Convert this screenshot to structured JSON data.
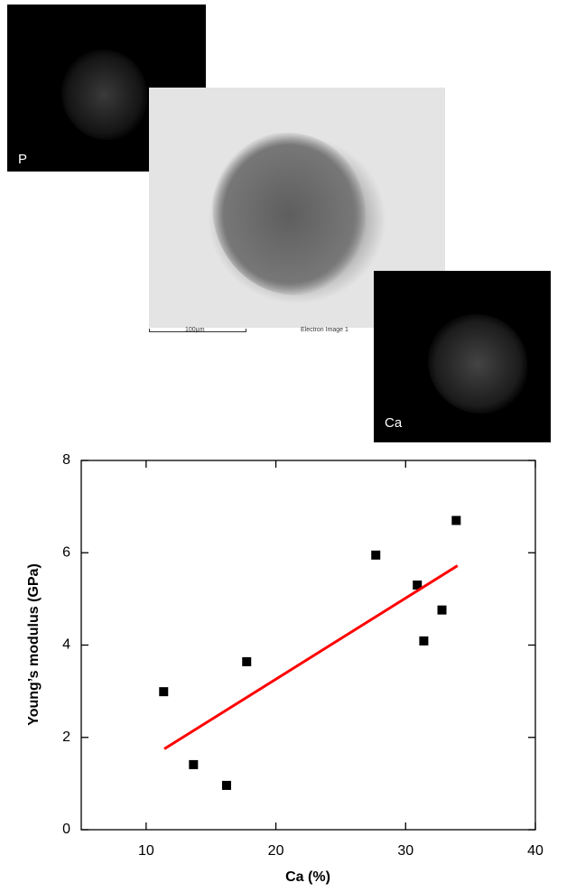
{
  "images": {
    "p_label": "P",
    "ca_label": "Ca",
    "scale_bar": "100µm",
    "sem_caption": "Electron Image 1"
  },
  "chart_data": {
    "type": "scatter",
    "xlabel": "Ca (%)",
    "ylabel": "Young’s modulus (GPa)",
    "xlim": [
      5,
      40
    ],
    "xticks": [
      10,
      20,
      30,
      40
    ],
    "ylim": [
      0,
      8
    ],
    "yticks": [
      0,
      2,
      4,
      6,
      8
    ],
    "series": [
      {
        "type": "scatter",
        "color": "#000000",
        "x": [
          11.35,
          13.65,
          16.2,
          17.75,
          27.7,
          30.9,
          31.4,
          32.8,
          33.9
        ],
        "values": [
          2.99,
          1.41,
          0.96,
          3.64,
          5.95,
          5.3,
          4.09,
          4.76,
          6.7
        ]
      },
      {
        "type": "line",
        "color": "#ff0000",
        "x": [
          11.4,
          34.0
        ],
        "values": [
          1.75,
          5.72
        ]
      }
    ]
  }
}
